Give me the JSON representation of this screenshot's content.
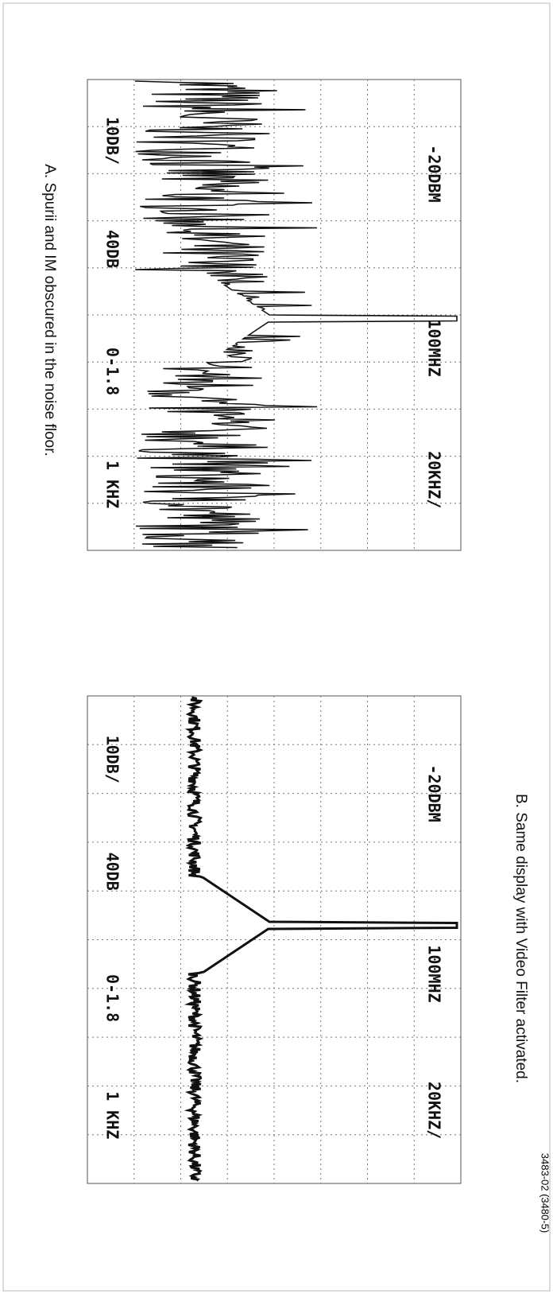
{
  "panel_a": {
    "labels": [
      "-20DBM",
      "100MHZ",
      "20KHZ/",
      "10DB/",
      "40DB",
      "0-1.8",
      "1 KHZ"
    ],
    "caption": "A. Spurii and IM obscured in the noise floor."
  },
  "panel_b": {
    "labels": [
      "-20DBM",
      "100MHZ",
      "20KHZ/",
      "10DB/",
      "40DB",
      "0-1.8",
      "1 KHZ"
    ],
    "caption": "B. Same display with Video Filter activated."
  },
  "figure_number": "3483-02 (3480-5)"
}
